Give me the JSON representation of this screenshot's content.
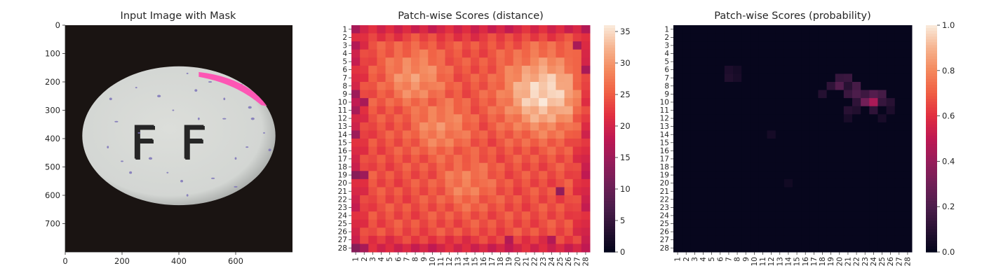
{
  "chart_data": [
    {
      "type": "image",
      "title": "Input Image with Mask",
      "xticks": [
        0,
        200,
        400,
        600
      ],
      "yticks": [
        0,
        100,
        200,
        300,
        400,
        500,
        600,
        700
      ],
      "xlim": [
        0,
        800
      ],
      "ylim": [
        800,
        0
      ],
      "content": "tablet",
      "tablet_letters": "FF",
      "colors": {
        "background": "#1a1412",
        "tablet": "#d3d6d3",
        "speckle": "#7d74b8",
        "mask": "#ff4fb2"
      }
    },
    {
      "type": "heatmap",
      "title": "Patch-wise Scores (distance)",
      "xlabels": [
        "1",
        "2",
        "3",
        "4",
        "5",
        "6",
        "7",
        "8",
        "9",
        "10",
        "11",
        "12",
        "13",
        "14",
        "15",
        "16",
        "17",
        "18",
        "19",
        "20",
        "21",
        "22",
        "23",
        "24",
        "25",
        "26",
        "27",
        "28"
      ],
      "ylabels": [
        "1",
        "2",
        "3",
        "4",
        "5",
        "6",
        "7",
        "8",
        "9",
        "10",
        "11",
        "12",
        "13",
        "14",
        "15",
        "16",
        "17",
        "18",
        "19",
        "20",
        "21",
        "22",
        "23",
        "24",
        "25",
        "26",
        "27",
        "28"
      ],
      "colorbar_ticks": [
        0,
        5,
        10,
        15,
        20,
        25,
        30,
        35
      ],
      "vmin": 0,
      "vmax": 36,
      "base_value": 24,
      "hotspots": [
        {
          "row": 9,
          "col": 23,
          "value": 35,
          "spread": 3.2
        },
        {
          "row": 7,
          "col": 8,
          "value": 30,
          "spread": 2.5
        },
        {
          "row": 13,
          "col": 11,
          "value": 29,
          "spread": 2.5
        },
        {
          "row": 20,
          "col": 14,
          "value": 28,
          "spread": 2.2
        }
      ],
      "low_cells": [
        [
          1,
          1,
          16
        ],
        [
          1,
          28,
          17
        ],
        [
          3,
          1,
          17
        ],
        [
          3,
          27,
          16
        ],
        [
          6,
          28,
          16
        ],
        [
          9,
          1,
          15
        ],
        [
          10,
          2,
          16
        ],
        [
          11,
          1,
          16
        ],
        [
          14,
          1,
          15
        ],
        [
          19,
          1,
          13
        ],
        [
          19,
          2,
          15
        ],
        [
          21,
          25,
          14
        ],
        [
          27,
          19,
          17
        ],
        [
          27,
          24,
          17
        ],
        [
          28,
          1,
          13
        ],
        [
          28,
          2,
          16
        ]
      ]
    },
    {
      "type": "heatmap",
      "title": "Patch-wise Scores (probability)",
      "xlabels": [
        "1",
        "2",
        "3",
        "4",
        "5",
        "6",
        "7",
        "8",
        "9",
        "10",
        "11",
        "12",
        "13",
        "14",
        "15",
        "16",
        "17",
        "18",
        "19",
        "20",
        "21",
        "22",
        "23",
        "24",
        "25",
        "26",
        "27",
        "28"
      ],
      "ylabels": [
        "1",
        "2",
        "3",
        "4",
        "5",
        "6",
        "7",
        "8",
        "9",
        "10",
        "11",
        "12",
        "13",
        "14",
        "15",
        "16",
        "17",
        "18",
        "19",
        "20",
        "21",
        "22",
        "23",
        "24",
        "25",
        "26",
        "27",
        "28"
      ],
      "colorbar_ticks": [
        "0.0",
        "0.2",
        "0.4",
        "0.6",
        "0.8",
        "1.0"
      ],
      "vmin": 0,
      "vmax": 1,
      "base_value": 0.01,
      "cells": [
        [
          6,
          7,
          0.07
        ],
        [
          7,
          7,
          0.08
        ],
        [
          7,
          8,
          0.06
        ],
        [
          6,
          8,
          0.05
        ],
        [
          7,
          20,
          0.14
        ],
        [
          7,
          21,
          0.15
        ],
        [
          8,
          19,
          0.12
        ],
        [
          8,
          20,
          0.22
        ],
        [
          8,
          22,
          0.18
        ],
        [
          8,
          21,
          0.1
        ],
        [
          9,
          18,
          0.09
        ],
        [
          9,
          21,
          0.15
        ],
        [
          9,
          22,
          0.2
        ],
        [
          9,
          23,
          0.16
        ],
        [
          9,
          24,
          0.22
        ],
        [
          9,
          25,
          0.18
        ],
        [
          10,
          22,
          0.12
        ],
        [
          10,
          23,
          0.3
        ],
        [
          10,
          24,
          0.45
        ],
        [
          10,
          25,
          0.14
        ],
        [
          10,
          26,
          0.1
        ],
        [
          11,
          21,
          0.1
        ],
        [
          11,
          22,
          0.08
        ],
        [
          11,
          24,
          0.12
        ],
        [
          11,
          26,
          0.07
        ],
        [
          12,
          21,
          0.06
        ],
        [
          12,
          25,
          0.06
        ],
        [
          14,
          12,
          0.05
        ],
        [
          20,
          14,
          0.04
        ]
      ]
    }
  ]
}
